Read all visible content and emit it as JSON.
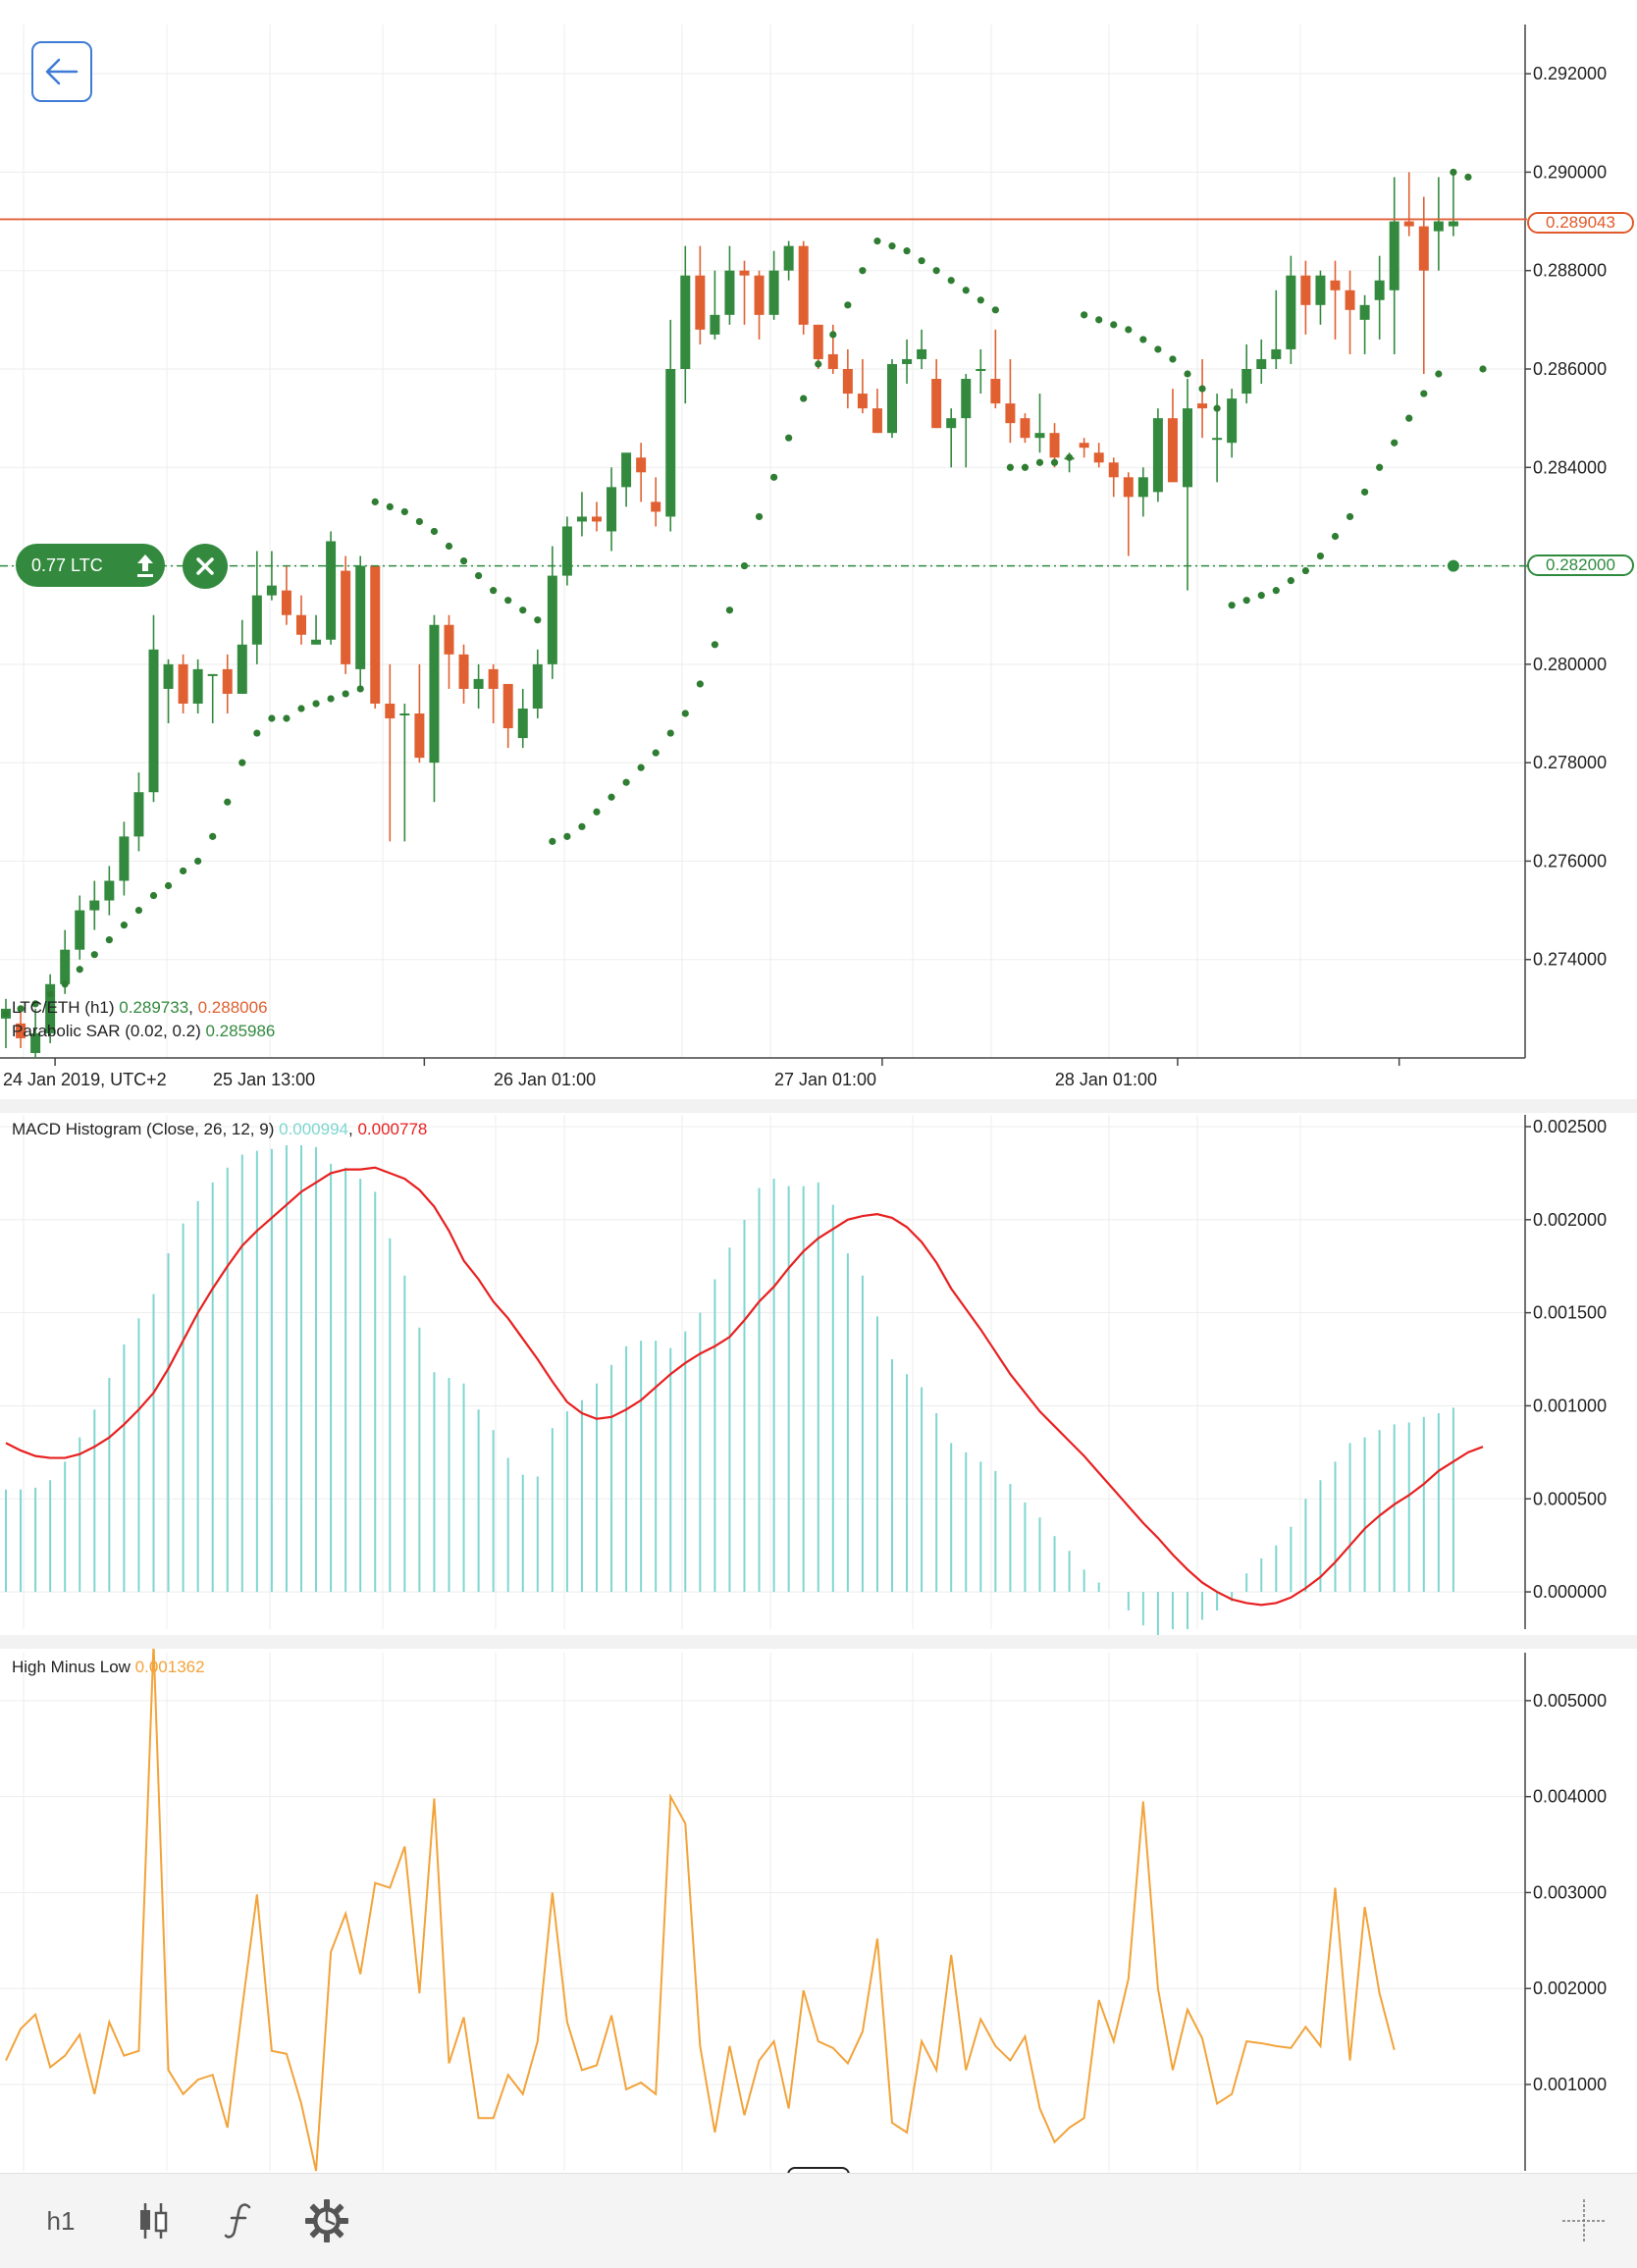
{
  "toolbar": {
    "timeframe_label": "h1",
    "icons": [
      "candlestick-icon",
      "function-icon",
      "gear-icon",
      "crosshair-icon"
    ]
  },
  "order": {
    "label": "0.77 LTC",
    "price_label": "0.282000"
  },
  "colors": {
    "bull": "#338a3e",
    "bear": "#e06032",
    "sar": "#2e7d32",
    "macd_hist": "#7fd6d0",
    "macd_signal": "#e82020",
    "hml": "#f2a33a",
    "current_price_line": "#e0603a",
    "order_line": "#2e8b3e"
  },
  "chart_data": [
    {
      "type": "candlestick",
      "symbol": "LTC/ETH (h1)",
      "legend": {
        "name": "LTC/ETH (h1)",
        "v1": "0.289733",
        "v2": "0.288006",
        "sar_name": "Parabolic SAR (0.02, 0.2)",
        "sar_value": "0.285986"
      },
      "current_price_label": "0.289043",
      "ylim": [
        0.272,
        0.293
      ],
      "y_ticks": [
        "0.292000",
        "0.290000",
        "0.288000",
        "0.286000",
        "0.284000",
        "0.282000",
        "0.280000",
        "0.278000",
        "0.276000",
        "0.274000"
      ],
      "x_ticks": [
        "24 Jan 2019, UTC+2",
        "25 Jan 13:00",
        "26 Jan 01:00",
        "27 Jan 01:00",
        "28 Jan 01:00"
      ],
      "x_tick_index": [
        2,
        21,
        40,
        59,
        78
      ],
      "candles": [
        [
          0.2728,
          0.2732,
          0.2722,
          0.273
        ],
        [
          0.2727,
          0.273,
          0.2722,
          0.2724
        ],
        [
          0.2721,
          0.273,
          0.272,
          0.2725
        ],
        [
          0.2725,
          0.2737,
          0.2723,
          0.2735
        ],
        [
          0.2735,
          0.2746,
          0.2733,
          0.2742
        ],
        [
          0.2742,
          0.2753,
          0.274,
          0.275
        ],
        [
          0.275,
          0.2756,
          0.2746,
          0.2752
        ],
        [
          0.2752,
          0.2759,
          0.2749,
          0.2756
        ],
        [
          0.2756,
          0.2768,
          0.2753,
          0.2765
        ],
        [
          0.2765,
          0.2778,
          0.2762,
          0.2774
        ],
        [
          0.2774,
          0.281,
          0.2772,
          0.2803
        ],
        [
          0.2795,
          0.2801,
          0.2788,
          0.28
        ],
        [
          0.28,
          0.2802,
          0.279,
          0.2792
        ],
        [
          0.2792,
          0.2801,
          0.279,
          0.2799
        ],
        [
          0.2798,
          0.2798,
          0.2788,
          0.2798
        ],
        [
          0.2799,
          0.2802,
          0.279,
          0.2794
        ],
        [
          0.2794,
          0.2809,
          0.2794,
          0.2804
        ],
        [
          0.2804,
          0.2823,
          0.28,
          0.2814
        ],
        [
          0.2814,
          0.2823,
          0.2813,
          0.2816
        ],
        [
          0.2815,
          0.282,
          0.2808,
          0.281
        ],
        [
          0.281,
          0.2814,
          0.2804,
          0.2806
        ],
        [
          0.2804,
          0.281,
          0.2804,
          0.2805
        ],
        [
          0.2805,
          0.2827,
          0.2804,
          0.2825
        ],
        [
          0.2819,
          0.2822,
          0.2798,
          0.28
        ],
        [
          0.2799,
          0.2822,
          0.2795,
          0.282
        ],
        [
          0.282,
          0.282,
          0.2791,
          0.2792
        ],
        [
          0.2792,
          0.28,
          0.2764,
          0.2789
        ],
        [
          0.279,
          0.2792,
          0.2764,
          0.279
        ],
        [
          0.279,
          0.28,
          0.278,
          0.2781
        ],
        [
          0.278,
          0.281,
          0.2772,
          0.2808
        ],
        [
          0.2808,
          0.281,
          0.2795,
          0.2802
        ],
        [
          0.2802,
          0.2804,
          0.2792,
          0.2795
        ],
        [
          0.2795,
          0.28,
          0.2791,
          0.2797
        ],
        [
          0.2799,
          0.28,
          0.2788,
          0.2795
        ],
        [
          0.2796,
          0.2795,
          0.2783,
          0.2787
        ],
        [
          0.2785,
          0.2795,
          0.2783,
          0.2791
        ],
        [
          0.2791,
          0.2803,
          0.2789,
          0.28
        ],
        [
          0.28,
          0.2824,
          0.2797,
          0.2818
        ],
        [
          0.2818,
          0.283,
          0.2816,
          0.2828
        ],
        [
          0.2829,
          0.2835,
          0.2826,
          0.283
        ],
        [
          0.283,
          0.2833,
          0.2827,
          0.2829
        ],
        [
          0.2827,
          0.284,
          0.2823,
          0.2836
        ],
        [
          0.2836,
          0.2842,
          0.2832,
          0.2843
        ],
        [
          0.2842,
          0.2845,
          0.2833,
          0.2839
        ],
        [
          0.2833,
          0.2838,
          0.2828,
          0.2831
        ],
        [
          0.283,
          0.287,
          0.2827,
          0.286
        ],
        [
          0.286,
          0.2885,
          0.2853,
          0.2879
        ],
        [
          0.2879,
          0.2885,
          0.2865,
          0.2868
        ],
        [
          0.2867,
          0.288,
          0.2866,
          0.2871
        ],
        [
          0.2871,
          0.2885,
          0.2869,
          0.288
        ],
        [
          0.288,
          0.2882,
          0.2869,
          0.2879
        ],
        [
          0.2879,
          0.288,
          0.2866,
          0.2871
        ],
        [
          0.2871,
          0.2884,
          0.287,
          0.288
        ],
        [
          0.288,
          0.2886,
          0.2878,
          0.2885
        ],
        [
          0.2885,
          0.2886,
          0.2867,
          0.2869
        ],
        [
          0.2869,
          0.2869,
          0.286,
          0.2862
        ],
        [
          0.2863,
          0.2869,
          0.2859,
          0.286
        ],
        [
          0.286,
          0.2864,
          0.2852,
          0.2855
        ],
        [
          0.2855,
          0.2862,
          0.2851,
          0.2852
        ],
        [
          0.2852,
          0.2856,
          0.2847,
          0.2847
        ],
        [
          0.2847,
          0.2862,
          0.2846,
          0.2861
        ],
        [
          0.2861,
          0.2866,
          0.2857,
          0.2862
        ],
        [
          0.2862,
          0.2868,
          0.286,
          0.2864
        ],
        [
          0.2858,
          0.2862,
          0.2848,
          0.2848
        ],
        [
          0.2848,
          0.2852,
          0.284,
          0.285
        ],
        [
          0.285,
          0.2859,
          0.284,
          0.2858
        ],
        [
          0.286,
          0.2864,
          0.2855,
          0.286
        ],
        [
          0.2858,
          0.2868,
          0.2852,
          0.2853
        ],
        [
          0.2853,
          0.2862,
          0.2845,
          0.2849
        ],
        [
          0.285,
          0.2851,
          0.2845,
          0.2846
        ],
        [
          0.2846,
          0.2855,
          0.2843,
          0.2847
        ],
        [
          0.2847,
          0.2849,
          0.284,
          0.2842
        ],
        [
          0.2842,
          0.2843,
          0.2839,
          0.2842
        ],
        [
          0.2845,
          0.2846,
          0.2842,
          0.2844
        ],
        [
          0.2843,
          0.2845,
          0.284,
          0.2841
        ],
        [
          0.2841,
          0.2842,
          0.2834,
          0.2838
        ],
        [
          0.2838,
          0.2839,
          0.2822,
          0.2834
        ],
        [
          0.2834,
          0.284,
          0.283,
          0.2838
        ],
        [
          0.2835,
          0.2852,
          0.2833,
          0.285
        ],
        [
          0.285,
          0.2856,
          0.2837,
          0.2837
        ],
        [
          0.2836,
          0.2858,
          0.2815,
          0.2852
        ],
        [
          0.2853,
          0.2862,
          0.2846,
          0.2852
        ],
        [
          0.2846,
          0.2855,
          0.2837,
          0.2846
        ],
        [
          0.2845,
          0.2856,
          0.2842,
          0.2854
        ],
        [
          0.2855,
          0.2865,
          0.2853,
          0.286
        ],
        [
          0.286,
          0.2866,
          0.2857,
          0.2862
        ],
        [
          0.2862,
          0.2876,
          0.286,
          0.2864
        ],
        [
          0.2864,
          0.2883,
          0.2861,
          0.2879
        ],
        [
          0.2879,
          0.2882,
          0.2867,
          0.2873
        ],
        [
          0.2873,
          0.288,
          0.2869,
          0.2879
        ],
        [
          0.2878,
          0.2882,
          0.2866,
          0.2876
        ],
        [
          0.2876,
          0.288,
          0.2863,
          0.2872
        ],
        [
          0.287,
          0.2875,
          0.2863,
          0.2873
        ],
        [
          0.2874,
          0.2883,
          0.2866,
          0.2878
        ],
        [
          0.2876,
          0.2899,
          0.2863,
          0.289
        ],
        [
          0.289,
          0.29,
          0.2887,
          0.2889
        ],
        [
          0.2889,
          0.2895,
          0.2859,
          0.288
        ],
        [
          0.2888,
          0.2899,
          0.288,
          0.289
        ],
        [
          0.2889,
          0.29,
          0.2887,
          0.289
        ]
      ],
      "sar": [
        0.2729,
        0.273,
        0.2731,
        0.2733,
        0.2735,
        0.2738,
        0.2741,
        0.2744,
        0.2747,
        0.275,
        0.2753,
        0.2755,
        0.2758,
        0.276,
        0.2765,
        0.2772,
        0.278,
        0.2786,
        0.2789,
        0.2789,
        0.2791,
        0.2792,
        0.2793,
        0.2794,
        0.2795,
        0.2833,
        0.2832,
        0.2831,
        0.2829,
        0.2827,
        0.2824,
        0.2821,
        0.2818,
        0.2815,
        0.2813,
        0.2811,
        0.2809,
        0.2764,
        0.2765,
        0.2767,
        0.277,
        0.2773,
        0.2776,
        0.2779,
        0.2782,
        0.2786,
        0.279,
        0.2796,
        0.2804,
        0.2811,
        0.282,
        0.283,
        0.2838,
        0.2846,
        0.2854,
        0.2861,
        0.2867,
        0.2873,
        0.288,
        0.2886,
        0.2885,
        0.2884,
        0.2882,
        0.288,
        0.2878,
        0.2876,
        0.2874,
        0.2872,
        0.284,
        0.284,
        0.2841,
        0.2841,
        0.2842,
        0.2871,
        0.287,
        0.2869,
        0.2868,
        0.2866,
        0.2864,
        0.2862,
        0.2859,
        0.2856,
        0.2852,
        0.2812,
        0.2813,
        0.2814,
        0.2815,
        0.2817,
        0.2819,
        0.2822,
        0.2826,
        0.283,
        0.2835,
        0.284,
        0.2845,
        0.285,
        0.2855,
        0.2859,
        0.29,
        0.2899,
        0.286
      ],
      "order_price": 0.282,
      "current_price": 0.289043
    },
    {
      "type": "histogram",
      "title": "MACD Histogram (Close, 26, 12, 9)",
      "legend_hist_value": "0.000994",
      "legend_signal_value": "0.000778",
      "ylim": [
        -0.0002,
        0.0025
      ],
      "y_ticks": [
        "0.002500",
        "0.002000",
        "0.001500",
        "0.001000",
        "0.000500",
        "0.000000"
      ],
      "histogram": [
        0.00055,
        0.00055,
        0.00056,
        0.0006,
        0.0007,
        0.00083,
        0.00098,
        0.00115,
        0.00133,
        0.00147,
        0.0016,
        0.00182,
        0.00198,
        0.0021,
        0.0022,
        0.00228,
        0.00235,
        0.00237,
        0.00238,
        0.0024,
        0.0024,
        0.00239,
        0.0023,
        0.00228,
        0.00222,
        0.00215,
        0.0019,
        0.0017,
        0.00142,
        0.00118,
        0.00115,
        0.00112,
        0.00098,
        0.00087,
        0.00072,
        0.00063,
        0.00062,
        0.00088,
        0.00097,
        0.00103,
        0.00112,
        0.00122,
        0.00132,
        0.00135,
        0.00135,
        0.00131,
        0.0014,
        0.0015,
        0.00168,
        0.00185,
        0.002,
        0.00217,
        0.00222,
        0.00218,
        0.00218,
        0.0022,
        0.00208,
        0.00182,
        0.0017,
        0.00148,
        0.00125,
        0.00117,
        0.0011,
        0.00096,
        0.0008,
        0.00075,
        0.0007,
        0.00065,
        0.00058,
        0.00048,
        0.0004,
        0.0003,
        0.00022,
        0.00012,
        5e-05,
        0.0,
        -0.0001,
        -0.00018,
        -0.00025,
        -0.0002,
        -0.0002,
        -0.00015,
        -0.0001,
        -5e-05,
        0.0001,
        0.00018,
        0.00025,
        0.00035,
        0.0005,
        0.0006,
        0.0007,
        0.0008,
        0.00083,
        0.00087,
        0.0009,
        0.00091,
        0.00094,
        0.00096,
        0.00099
      ],
      "signal": [
        0.0008,
        0.00076,
        0.00073,
        0.00072,
        0.00072,
        0.00074,
        0.00078,
        0.00083,
        0.0009,
        0.00098,
        0.00107,
        0.0012,
        0.00135,
        0.0015,
        0.00163,
        0.00175,
        0.00186,
        0.00194,
        0.00201,
        0.00208,
        0.00215,
        0.0022,
        0.00225,
        0.00227,
        0.00227,
        0.00228,
        0.00225,
        0.00222,
        0.00216,
        0.00207,
        0.00194,
        0.00178,
        0.00168,
        0.00156,
        0.00147,
        0.00136,
        0.00125,
        0.00113,
        0.00102,
        0.00096,
        0.00093,
        0.00094,
        0.00098,
        0.00103,
        0.0011,
        0.00117,
        0.00123,
        0.00128,
        0.00132,
        0.00137,
        0.00146,
        0.00156,
        0.00164,
        0.00174,
        0.00183,
        0.0019,
        0.00195,
        0.002,
        0.00202,
        0.00203,
        0.00201,
        0.00196,
        0.00188,
        0.00177,
        0.00163,
        0.00152,
        0.00141,
        0.00129,
        0.00117,
        0.00107,
        0.00097,
        0.00089,
        0.00081,
        0.00073,
        0.00064,
        0.00055,
        0.00046,
        0.00037,
        0.00029,
        0.0002,
        0.00012,
        5e-05,
        0.0,
        -4e-05,
        -6e-05,
        -7e-05,
        -6e-05,
        -3e-05,
        2e-05,
        8e-05,
        0.00016,
        0.00025,
        0.00034,
        0.00041,
        0.00047,
        0.00052,
        0.00058,
        0.00065,
        0.0007,
        0.00075,
        0.00078
      ],
      "zero_line": 0
    },
    {
      "type": "line",
      "title": "High Minus Low",
      "legend_value": "0.001362",
      "ylim": [
        0.0001,
        0.0055
      ],
      "y_ticks": [
        "0.005000",
        "0.004000",
        "0.003000",
        "0.002000",
        "0.001000"
      ],
      "values": [
        0.00125,
        0.00158,
        0.00173,
        0.00118,
        0.0013,
        0.00152,
        0.0009,
        0.00165,
        0.0013,
        0.00135,
        0.0056,
        0.00115,
        0.0009,
        0.00105,
        0.0011,
        0.00055,
        0.0018,
        0.00298,
        0.00135,
        0.00132,
        0.0008,
        0.0001,
        0.00238,
        0.00278,
        0.00215,
        0.0031,
        0.00305,
        0.00348,
        0.00195,
        0.00398,
        0.00122,
        0.0017,
        0.00065,
        0.00065,
        0.0011,
        0.0009,
        0.00145,
        0.003,
        0.00165,
        0.00115,
        0.0012,
        0.00172,
        0.00095,
        0.00102,
        0.0009,
        0.004,
        0.00372,
        0.0014,
        0.0005,
        0.0014,
        0.00068,
        0.00125,
        0.00145,
        0.00075,
        0.00198,
        0.00145,
        0.00138,
        0.00122,
        0.00155,
        0.00252,
        0.0006,
        0.0005,
        0.00145,
        0.00115,
        0.00235,
        0.00115,
        0.00168,
        0.0014,
        0.00125,
        0.0015,
        0.00075,
        0.0004,
        0.00055,
        0.00065,
        0.00188,
        0.00145,
        0.0021,
        0.00395,
        0.002,
        0.00115,
        0.00178,
        0.00148,
        0.0008,
        0.0009,
        0.00145,
        0.00143,
        0.0014,
        0.00138,
        0.0016,
        0.0014,
        0.00305,
        0.00125,
        0.00285,
        0.00195,
        0.00136
      ]
    }
  ]
}
